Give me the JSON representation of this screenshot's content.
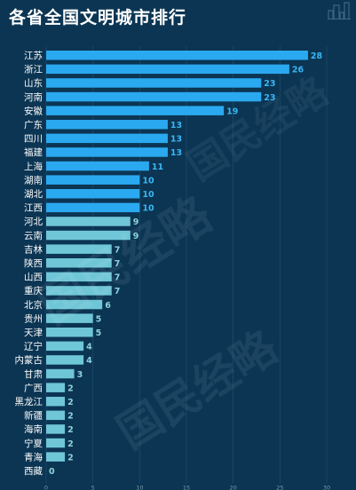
{
  "title": "各省全国文明城市排行",
  "watermark": "国民经略",
  "chart_data": {
    "type": "bar",
    "orientation": "horizontal",
    "title": "各省全国文明城市排行",
    "categories": [
      "江苏",
      "浙江",
      "山东",
      "河南",
      "安徽",
      "广东",
      "四川",
      "福建",
      "上海",
      "湖南",
      "湖北",
      "江西",
      "河北",
      "云南",
      "吉林",
      "陕西",
      "山西",
      "重庆",
      "北京",
      "贵州",
      "天津",
      "辽宁",
      "内蒙古",
      "甘肃",
      "广西",
      "黑龙江",
      "新疆",
      "海南",
      "宁夏",
      "青海",
      "西藏"
    ],
    "values": [
      28,
      26,
      23,
      23,
      19,
      13,
      13,
      13,
      11,
      10,
      10,
      10,
      9,
      9,
      7,
      7,
      7,
      7,
      6,
      5,
      5,
      4,
      4,
      3,
      2,
      2,
      2,
      2,
      2,
      2,
      0
    ],
    "xlim": [
      0,
      30
    ],
    "xticks": [
      0,
      5,
      10,
      15,
      20,
      25,
      30
    ],
    "grid": true,
    "colors": {
      "high": "#2aa9f0",
      "low": "#6fc6d6",
      "value_high": "#39b6f5",
      "value_low": "#8fd3dc"
    }
  }
}
